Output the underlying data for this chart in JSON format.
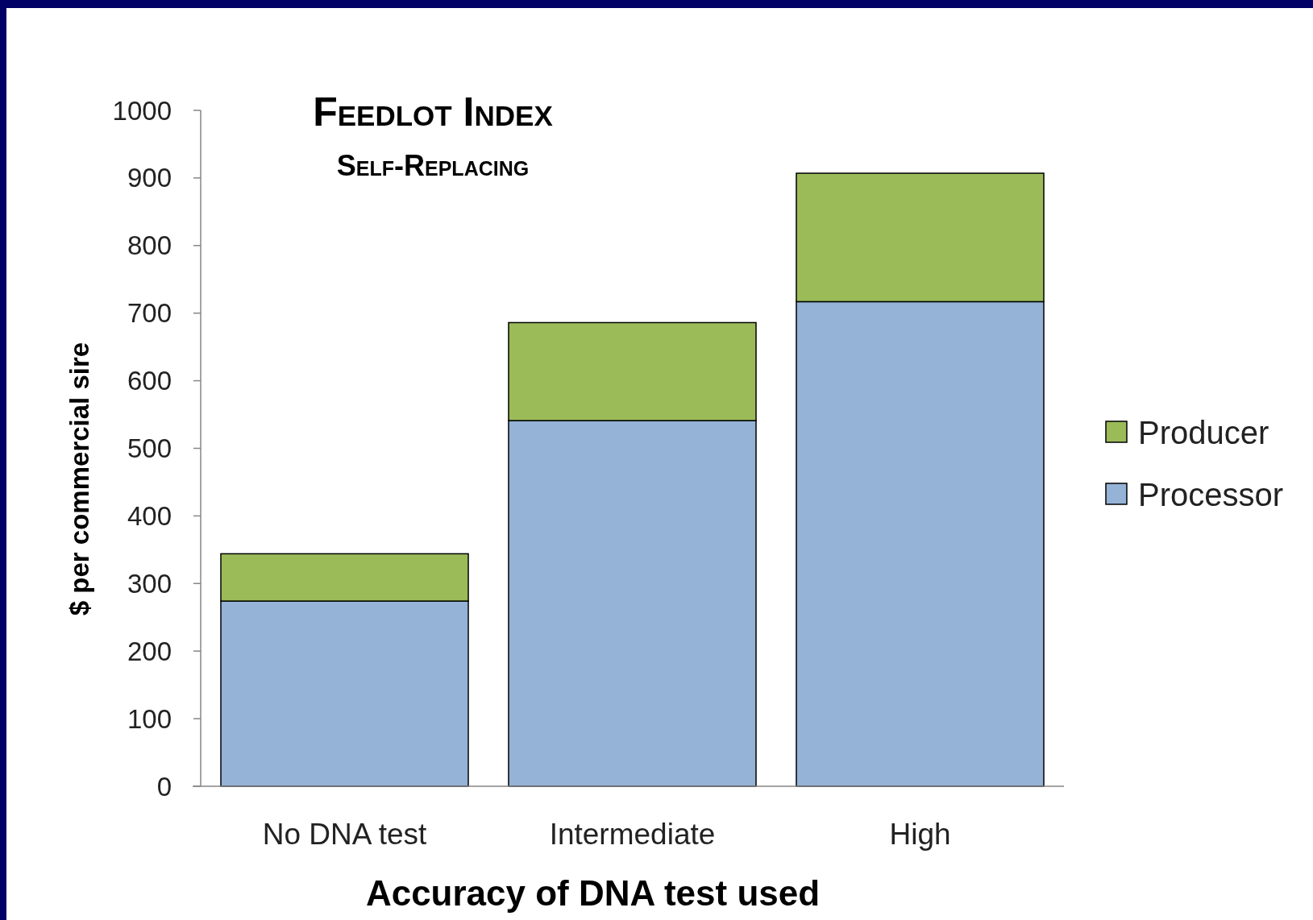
{
  "chart_data": {
    "type": "bar",
    "title": "Feedlot Index",
    "subtitle": "Self-Replacing",
    "xlabel": "Accuracy of DNA test used",
    "ylabel": "$ per commercial sire",
    "categories": [
      "No DNA test",
      "Intermediate",
      "High"
    ],
    "series": [
      {
        "name": "Processor",
        "color": "#95b3d7",
        "values": [
          274,
          541,
          717
        ]
      },
      {
        "name": "Producer",
        "color": "#9bbb59",
        "values": [
          70,
          145,
          190
        ]
      }
    ],
    "stacked": true,
    "ylim": [
      0,
      1000
    ],
    "yticks": [
      0,
      100,
      200,
      300,
      400,
      500,
      600,
      700,
      800,
      900,
      1000
    ],
    "grid": false,
    "legend": "right"
  }
}
